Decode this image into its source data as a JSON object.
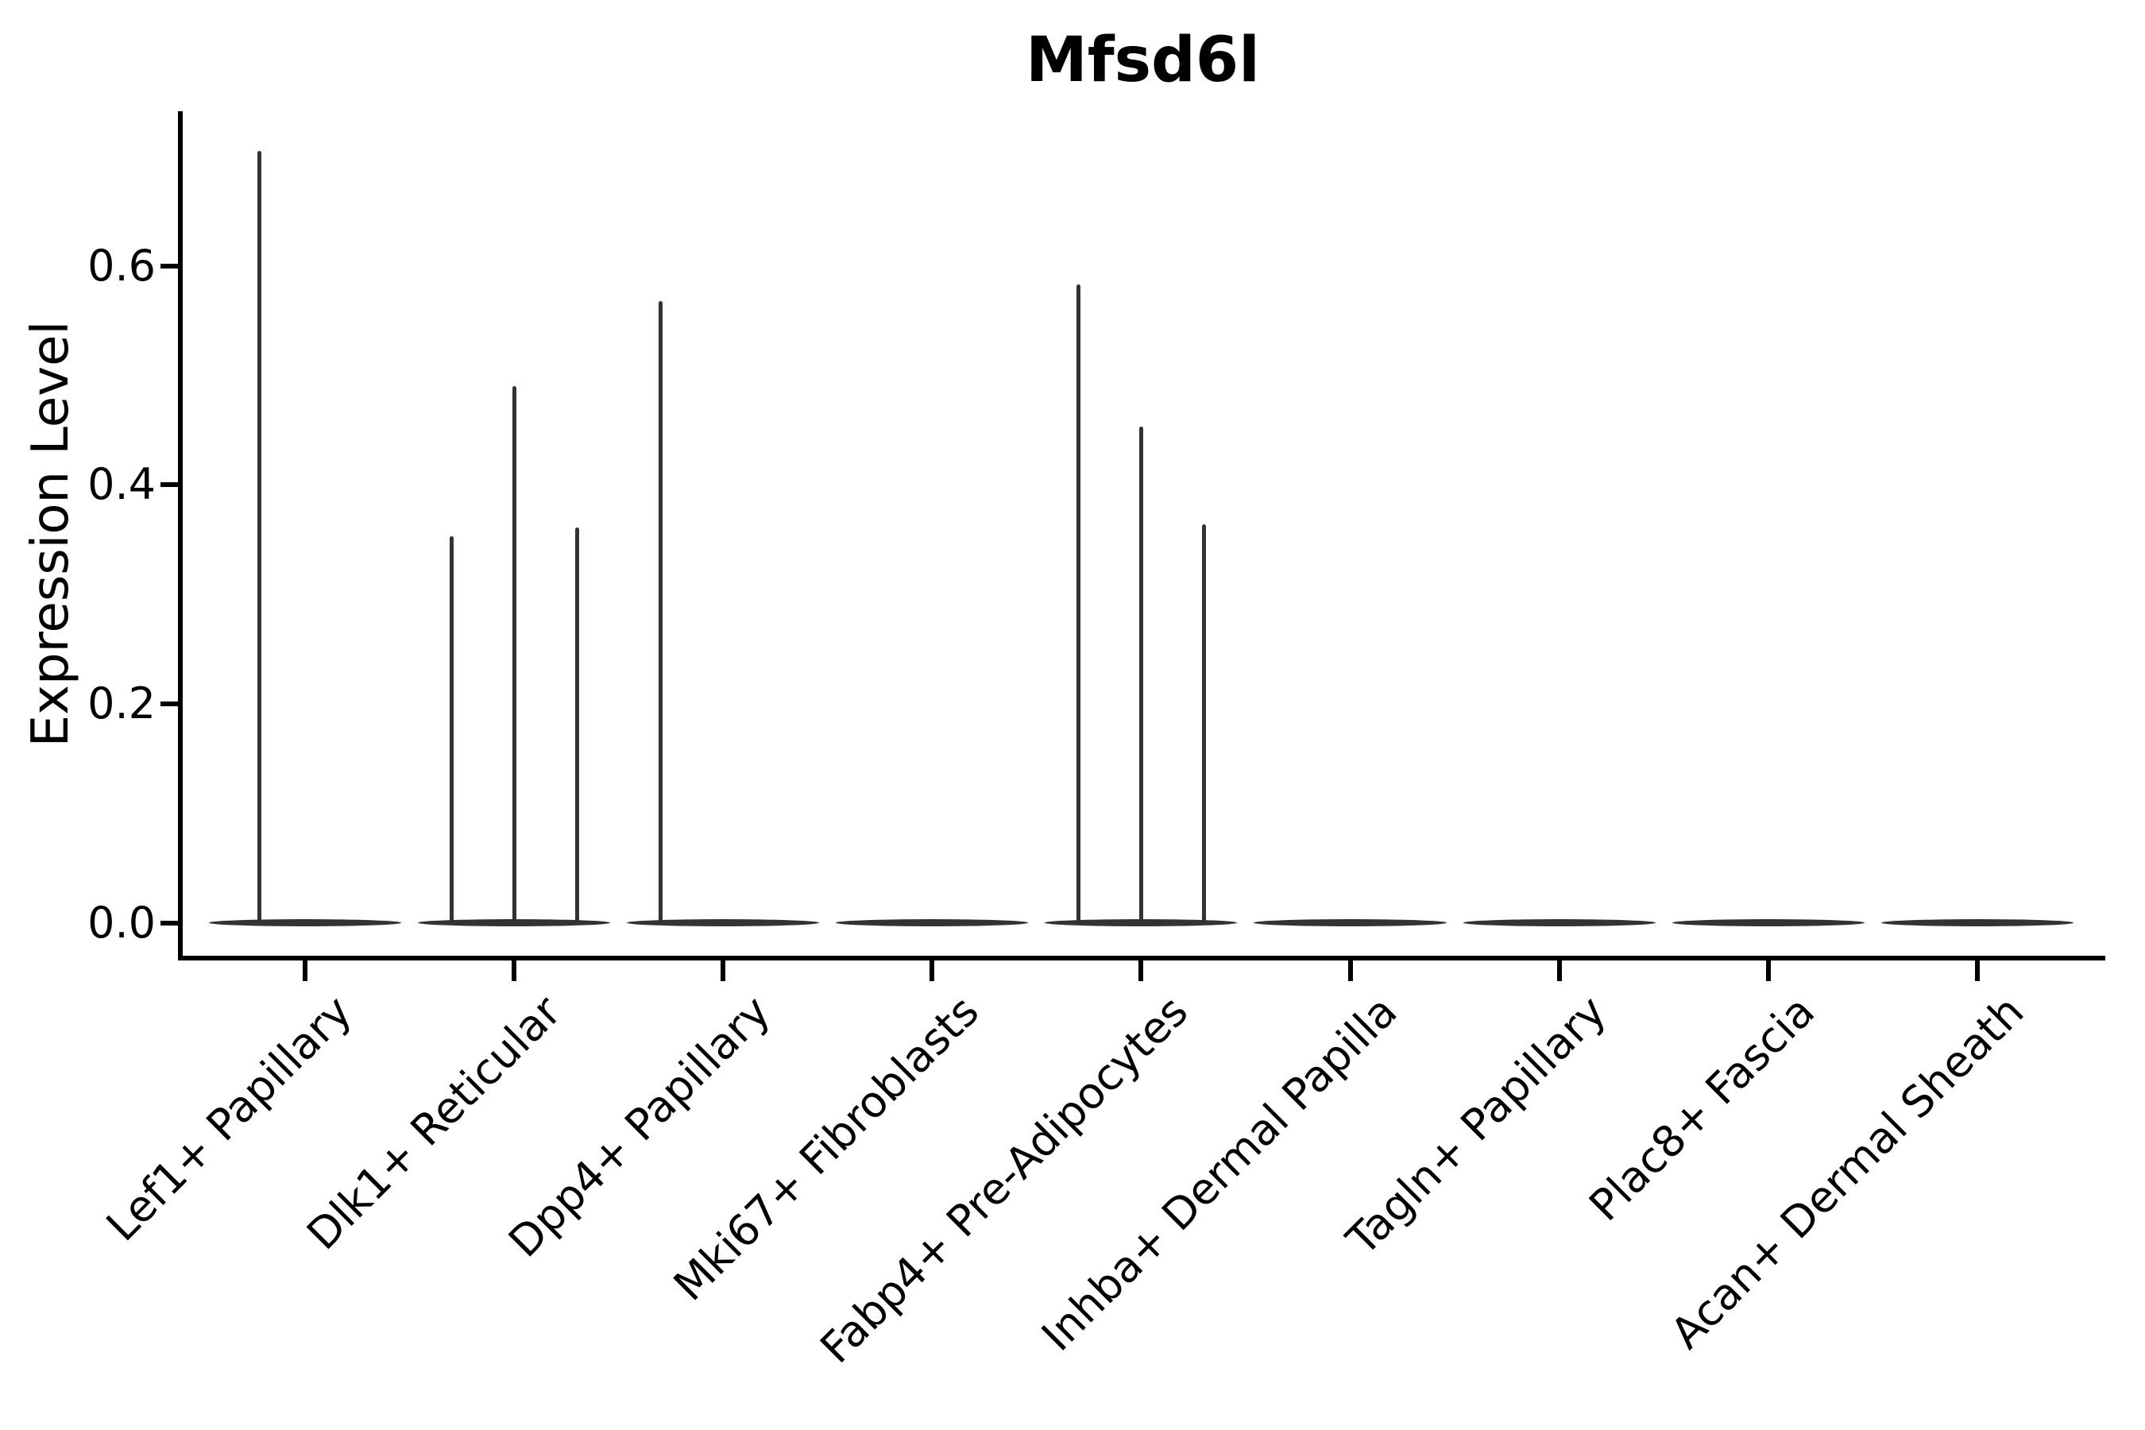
{
  "chart_data": {
    "type": "violin",
    "title": "Mfsd6l",
    "xlabel": "",
    "ylabel": "Expression Level",
    "ylim": [
      -0.032,
      0.742
    ],
    "ytick_values": [
      0.0,
      0.2,
      0.4,
      0.6
    ],
    "ytick_labels": [
      "0.0",
      "0.2",
      "0.4",
      "0.6"
    ],
    "grid": false,
    "legend": "none",
    "categories": [
      "Lef1+ Papillary",
      "Dlk1+ Reticular",
      "Dpp4+ Papillary",
      "Mki67+ Fibroblasts",
      "Fabp4+ Pre-Adipocytes",
      "Inhba+ Dermal Papilla",
      "Tagln+ Papillary",
      "Plac8+ Fascia",
      "Acan+ Dermal Sheath"
    ],
    "series": [
      {
        "category": "Lef1+ Papillary",
        "baseline_value": 0.0,
        "violin_halfwidth": 0.46,
        "spikes": [
          {
            "offset": -0.22,
            "max": 0.705
          }
        ]
      },
      {
        "category": "Dlk1+ Reticular",
        "baseline_value": 0.0,
        "violin_halfwidth": 0.46,
        "spikes": [
          {
            "offset": -0.3,
            "max": 0.353
          },
          {
            "offset": 0.0,
            "max": 0.49
          },
          {
            "offset": 0.3,
            "max": 0.361
          }
        ]
      },
      {
        "category": "Dpp4+ Papillary",
        "baseline_value": 0.0,
        "violin_halfwidth": 0.46,
        "spikes": [
          {
            "offset": -0.3,
            "max": 0.568
          }
        ]
      },
      {
        "category": "Mki67+ Fibroblasts",
        "baseline_value": 0.0,
        "violin_halfwidth": 0.46,
        "spikes": []
      },
      {
        "category": "Fabp4+ Pre-Adipocytes",
        "baseline_value": 0.0,
        "violin_halfwidth": 0.46,
        "spikes": [
          {
            "offset": -0.3,
            "max": 0.583
          },
          {
            "offset": 0.0,
            "max": 0.453
          },
          {
            "offset": 0.3,
            "max": 0.364
          }
        ]
      },
      {
        "category": "Inhba+ Dermal Papilla",
        "baseline_value": 0.0,
        "violin_halfwidth": 0.46,
        "spikes": []
      },
      {
        "category": "Tagln+ Papillary",
        "baseline_value": 0.0,
        "violin_halfwidth": 0.46,
        "spikes": []
      },
      {
        "category": "Plac8+ Fascia",
        "baseline_value": 0.0,
        "violin_halfwidth": 0.46,
        "spikes": []
      },
      {
        "category": "Acan+ Dermal Sheath",
        "baseline_value": 0.0,
        "violin_halfwidth": 0.46,
        "spikes": []
      }
    ],
    "colors": {
      "violin": "#333333",
      "axis": "#000000",
      "text": "#000000",
      "background": "#ffffff"
    }
  }
}
